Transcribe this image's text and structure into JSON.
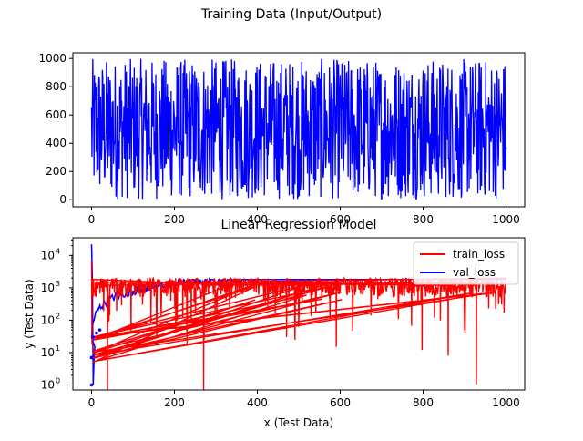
{
  "figure": {
    "suptitle": "Training Data (Input/Output)"
  },
  "chart_data": [
    {
      "type": "line",
      "title": "",
      "xlabel": "",
      "ylabel": "",
      "xlim": [
        -45,
        1045
      ],
      "ylim": [
        -50,
        1040
      ],
      "xticks": [
        0,
        200,
        400,
        600,
        800,
        1000
      ],
      "yticks": [
        0,
        200,
        400,
        600,
        800,
        1000
      ],
      "grid": false,
      "series": [
        {
          "name": "",
          "color": "#0000ff",
          "description_points": "1000 noisy samples uniformly distributed in [0, 1000]",
          "x_range": [
            0,
            1000
          ],
          "y_range": [
            0,
            1000
          ]
        }
      ]
    },
    {
      "type": "line",
      "title": "Linear Regression Model",
      "xlabel": "x (Test Data)",
      "ylabel": "y (Test Data)",
      "yscale": "log",
      "xlim": [
        -45,
        1045
      ],
      "ylim": [
        0.7,
        35000
      ],
      "xticks": [
        0,
        200,
        400,
        600,
        800,
        1000
      ],
      "yticks_labels": [
        "10^0",
        "10^1",
        "10^2",
        "10^3",
        "10^4"
      ],
      "yticks": [
        1,
        10,
        100,
        1000,
        10000
      ],
      "grid": false,
      "legend": "top-right",
      "series": [
        {
          "name": "train_loss",
          "color": "#ff0000"
        },
        {
          "name": "val_loss",
          "color": "#0000ff"
        }
      ]
    }
  ]
}
